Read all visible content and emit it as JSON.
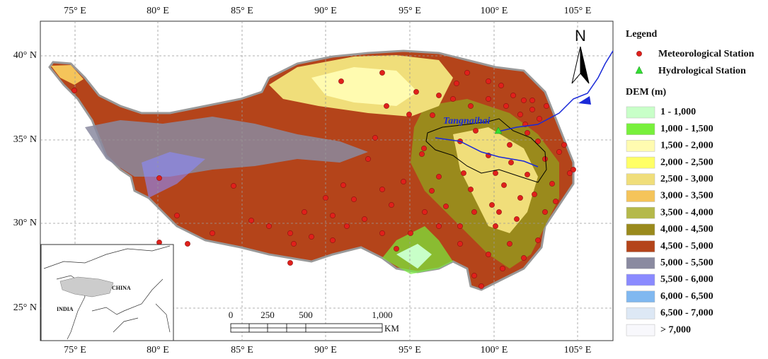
{
  "map": {
    "lon_labels": [
      "75° E",
      "80° E",
      "85° E",
      "90° E",
      "95° E",
      "100° E",
      "105° E"
    ],
    "lat_labels": [
      "40° N",
      "35° N",
      "30° N",
      "25° N"
    ],
    "north": "N",
    "station_label": "Tangnaihai",
    "scale_bar": {
      "labels": [
        "0",
        "250",
        "500",
        "1,000"
      ],
      "unit": "KM"
    },
    "inset": {
      "country": "CHINA",
      "neighbor": "INDIA"
    }
  },
  "legend": {
    "title": "Legend",
    "items": [
      {
        "label": "Meteorological Station",
        "color": "#e0201b"
      },
      {
        "label": "Hydrological Station",
        "color": "#33dd33"
      }
    ],
    "dem_title": "DEM (m)",
    "dem_classes": [
      {
        "label": "1 - 1,000",
        "color": "#c8ffc8"
      },
      {
        "label": "1,000 - 1,500",
        "color": "#78f03c"
      },
      {
        "label": "1,500 - 2,000",
        "color": "#fffbb0"
      },
      {
        "label": "2,000 - 2,500",
        "color": "#ffff66"
      },
      {
        "label": "2,500 - 3,000",
        "color": "#f0de7a"
      },
      {
        "label": "3,000 - 3,500",
        "color": "#f5c45a"
      },
      {
        "label": "3,500 - 4,000",
        "color": "#b5b94a"
      },
      {
        "label": "4,000 - 4,500",
        "color": "#9a8a1c"
      },
      {
        "label": "4,500 - 5,000",
        "color": "#b4441a"
      },
      {
        "label": "5,000 - 5,500",
        "color": "#8a8aa0"
      },
      {
        "label": "5,500 - 6,000",
        "color": "#8a8aff"
      },
      {
        "label": "6,000 - 6,500",
        "color": "#80b8f0"
      },
      {
        "label": "6,500 - 7,000",
        "color": "#dde8f5"
      },
      {
        "label": "> 7,000",
        "color": "#f8f8fc"
      }
    ]
  }
}
